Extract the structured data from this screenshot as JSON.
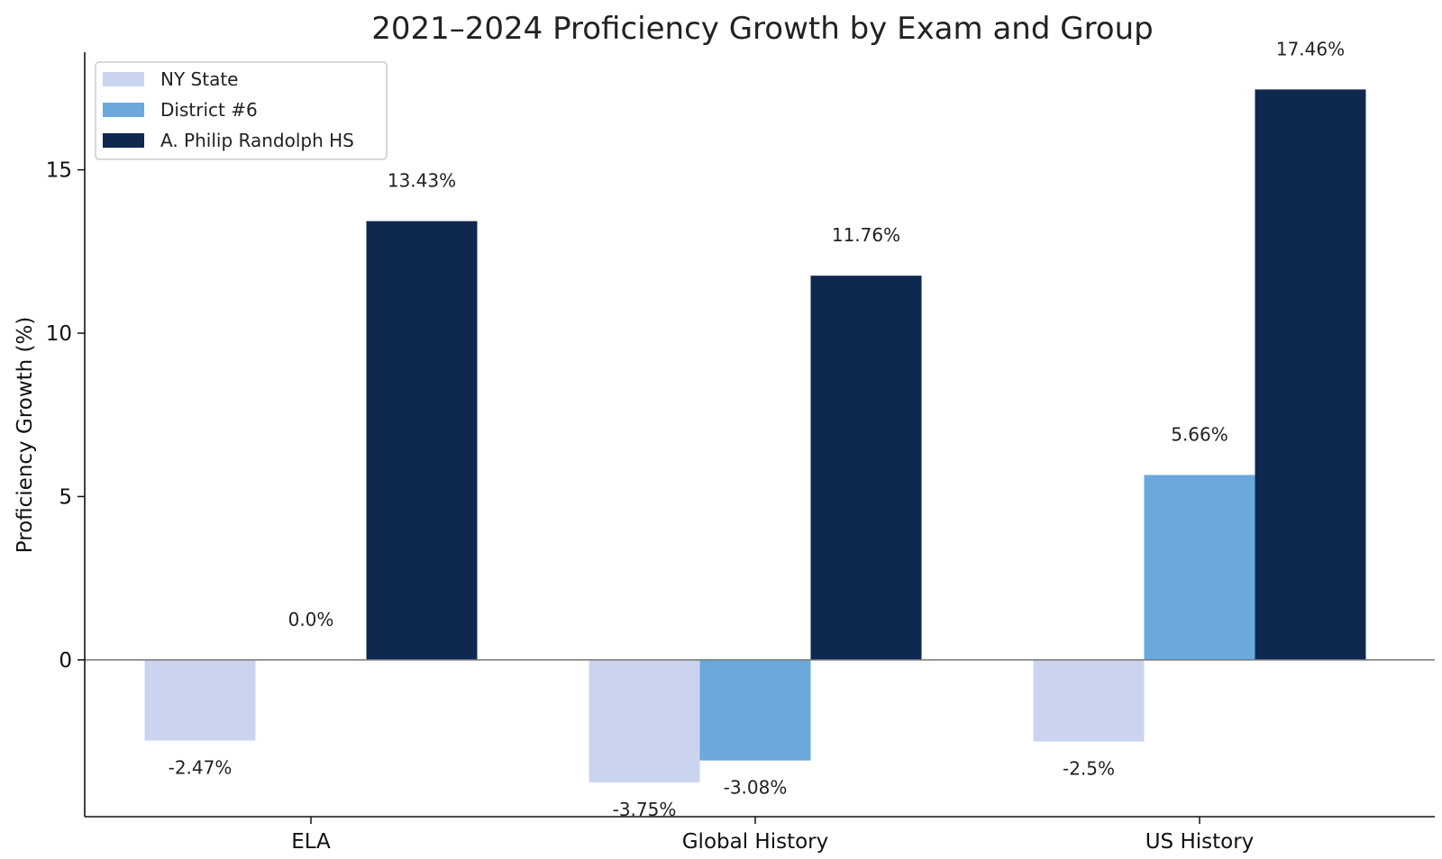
{
  "chart_data": {
    "type": "bar",
    "title": "2021–2024 Proficiency Growth by Exam and Group",
    "xlabel": "",
    "ylabel": "Proficiency Growth (%)",
    "ylim": [
      -4.8,
      18.6
    ],
    "yticks": [
      0,
      5,
      10,
      15
    ],
    "categories": [
      "ELA",
      "Global History",
      "US History"
    ],
    "series": [
      {
        "name": "NY State",
        "color": "#cad4ef",
        "values": [
          -2.47,
          -3.75,
          -2.5
        ],
        "labels": [
          "-2.47%",
          "-3.75%",
          "-2.5%"
        ]
      },
      {
        "name": "District #6",
        "color": "#6ba8dc",
        "values": [
          0.0,
          -3.08,
          5.66
        ],
        "labels": [
          "0.0%",
          "-3.08%",
          "5.66%"
        ]
      },
      {
        "name": "A. Philip Randolph HS",
        "color": "#0f2850",
        "values": [
          13.43,
          11.76,
          17.46
        ],
        "labels": [
          "13.43%",
          "11.76%",
          "17.46%"
        ]
      }
    ],
    "legend": "top-left",
    "grid": false
  }
}
